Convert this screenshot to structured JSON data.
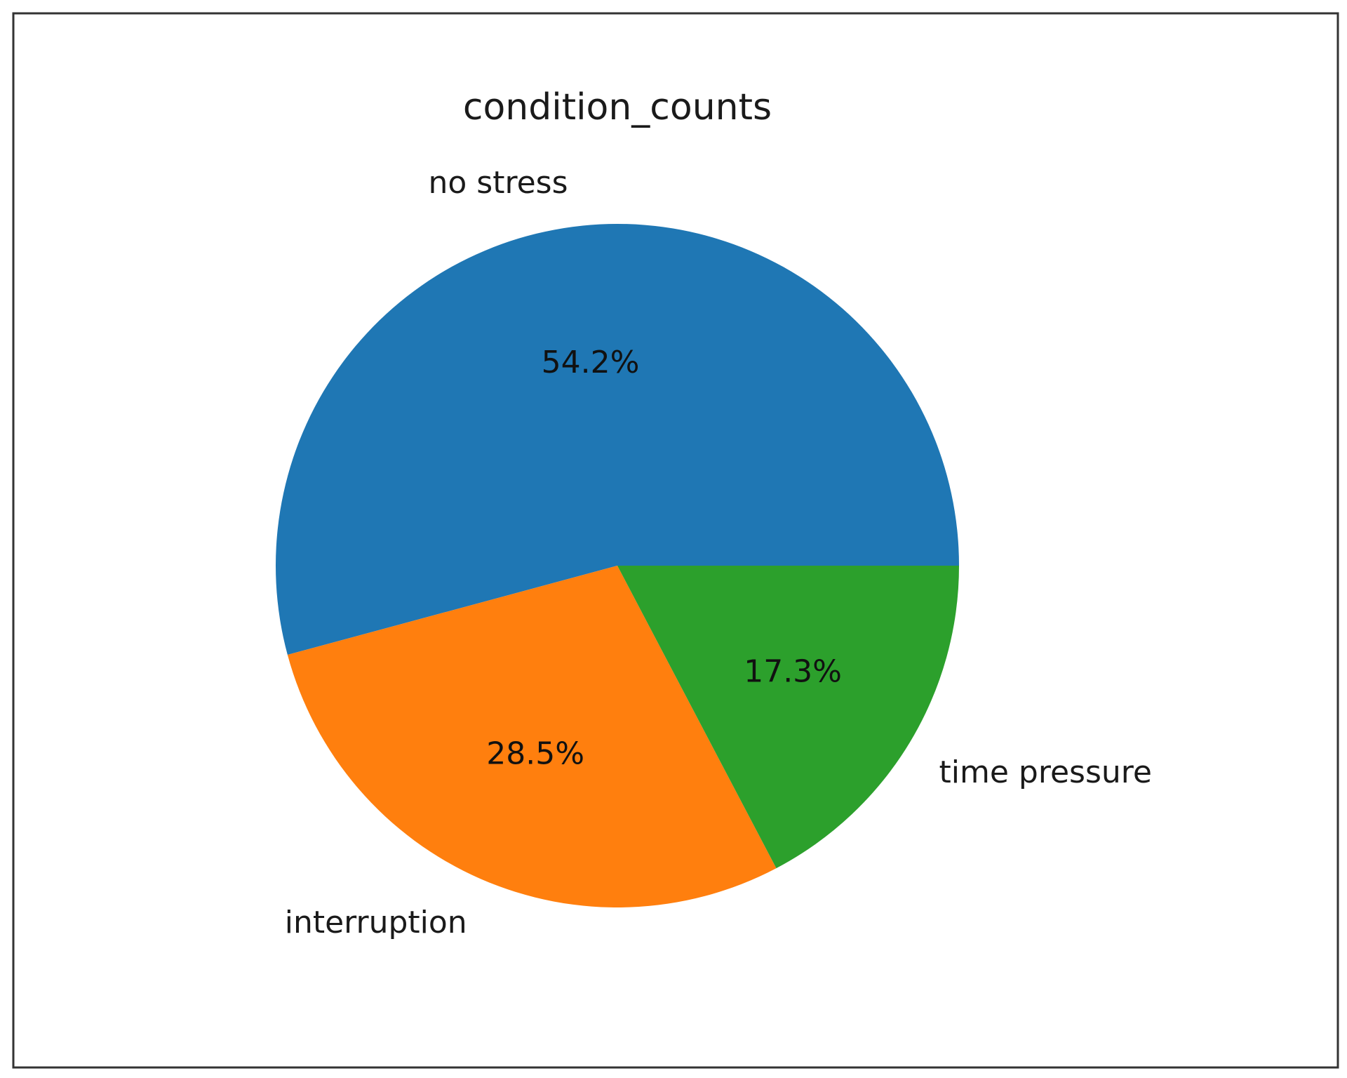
{
  "chart_data": {
    "type": "pie",
    "title": "condition_counts",
    "categories": [
      "no stress",
      "interruption",
      "time pressure"
    ],
    "values": [
      54.2,
      28.5,
      17.3
    ],
    "value_labels": [
      "54.2%",
      "28.5%",
      "17.3%"
    ],
    "colors": [
      "#1f77b4",
      "#ff7f0e",
      "#2ca02c"
    ],
    "start_angle": 0,
    "direction": "counterclockwise",
    "legend": false
  }
}
